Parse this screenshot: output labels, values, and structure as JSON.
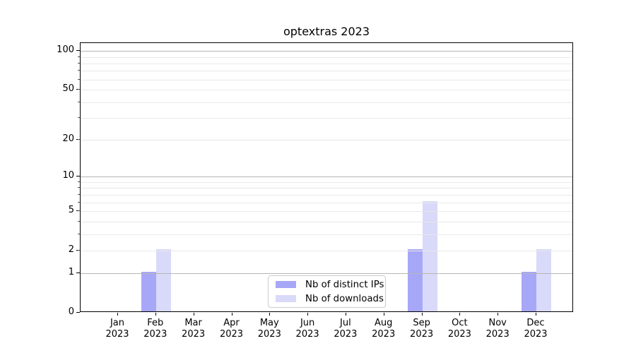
{
  "title": "optextras 2023",
  "chart_data": {
    "type": "bar",
    "title": "optextras 2023",
    "categories": [
      "Jan",
      "Feb",
      "Mar",
      "Apr",
      "May",
      "Jun",
      "Jul",
      "Aug",
      "Sep",
      "Oct",
      "Nov",
      "Dec"
    ],
    "category_year": "2023",
    "series": [
      {
        "name": "Nb of distinct IPs",
        "color": "#a7a7f7",
        "values": [
          0,
          1,
          0,
          0,
          0,
          0,
          0,
          0,
          2,
          0,
          0,
          1
        ]
      },
      {
        "name": "Nb of downloads",
        "color": "#d9d9f9",
        "values": [
          0,
          2,
          0,
          0,
          0,
          0,
          0,
          0,
          6,
          0,
          0,
          2
        ]
      }
    ],
    "xlabel": "",
    "ylabel": "",
    "yscale": "log1p",
    "ylim": [
      0,
      115
    ],
    "y_ticks": [
      0,
      1,
      2,
      5,
      10,
      20,
      50,
      100
    ],
    "y_major_gridlines": [
      1,
      10,
      100
    ],
    "y_minor_gridlines": [
      2,
      3,
      4,
      5,
      6,
      7,
      8,
      9,
      20,
      30,
      40,
      50,
      60,
      70,
      80,
      90
    ],
    "grid": true,
    "legend_position": "lower center",
    "colors": {
      "axis": "#000000",
      "major_grid": "#b5b5b5",
      "minor_grid": "#e9e9e9",
      "text": "#000000",
      "background": "#ffffff"
    }
  }
}
